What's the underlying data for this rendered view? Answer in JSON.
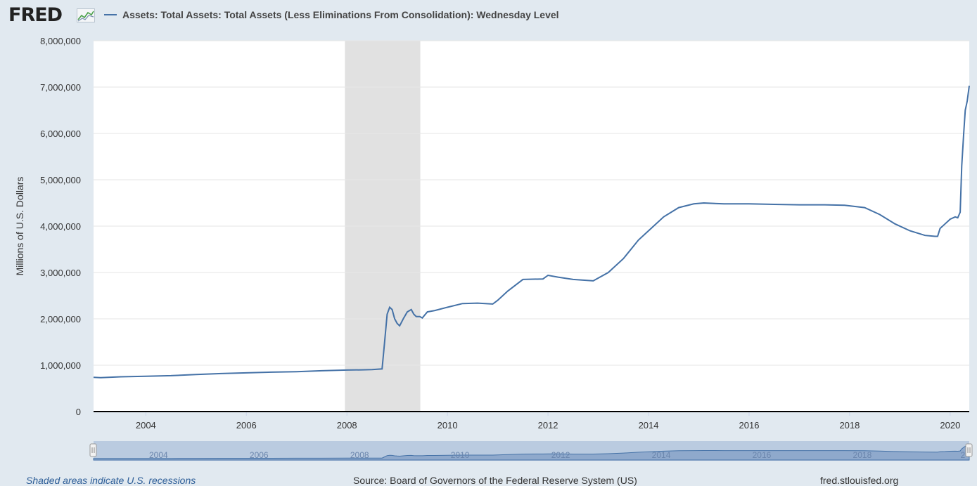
{
  "header": {
    "logo_text": "FRED",
    "series_title": "Assets: Total Assets: Total Assets (Less Eliminations From Consolidation): Wednesday Level"
  },
  "footer": {
    "recession_note": "Shaded areas indicate U.S. recessions",
    "source": "Source: Board of Governors of the Federal Reserve System (US)",
    "url": "fred.stlouisfed.org"
  },
  "colors": {
    "line": "#4572a7",
    "recession": "#e1e1e1",
    "navigator_fill": "#8fa9cc"
  },
  "chart_data": {
    "type": "line",
    "title": "Assets: Total Assets: Total Assets (Less Eliminations From Consolidation): Wednesday Level",
    "xlabel": "",
    "ylabel": "Millions of U.S. Dollars",
    "xlim": [
      2002.96,
      2020.38
    ],
    "ylim": [
      0,
      8000000
    ],
    "y_ticks": [
      0,
      1000000,
      2000000,
      3000000,
      4000000,
      5000000,
      6000000,
      7000000,
      8000000
    ],
    "y_tick_labels": [
      "0",
      "1,000,000",
      "2,000,000",
      "3,000,000",
      "4,000,000",
      "5,000,000",
      "6,000,000",
      "7,000,000",
      "8,000,000"
    ],
    "x_ticks": [
      2004,
      2006,
      2008,
      2010,
      2012,
      2014,
      2016,
      2018,
      2020
    ],
    "x_tick_labels": [
      "2004",
      "2006",
      "2008",
      "2010",
      "2012",
      "2014",
      "2016",
      "2018",
      "2020"
    ],
    "grid": true,
    "recessions": [
      [
        2007.96,
        2009.46
      ]
    ],
    "series": [
      {
        "name": "Assets: Total Assets: Total Assets (Less Eliminations From Consolidation): Wednesday Level",
        "x": [
          2002.96,
          2003.1,
          2003.5,
          2004.0,
          2004.5,
          2005.0,
          2005.5,
          2006.0,
          2006.5,
          2007.0,
          2007.5,
          2008.0,
          2008.3,
          2008.5,
          2008.7,
          2008.75,
          2008.8,
          2008.85,
          2008.9,
          2008.95,
          2009.0,
          2009.05,
          2009.12,
          2009.2,
          2009.28,
          2009.33,
          2009.38,
          2009.45,
          2009.5,
          2009.6,
          2009.75,
          2010.0,
          2010.3,
          2010.6,
          2010.9,
          2011.0,
          2011.2,
          2011.5,
          2011.9,
          2012.0,
          2012.2,
          2012.5,
          2012.9,
          2013.2,
          2013.5,
          2013.8,
          2014.0,
          2014.3,
          2014.6,
          2014.9,
          2015.1,
          2015.5,
          2016.0,
          2016.5,
          2017.0,
          2017.5,
          2017.9,
          2018.3,
          2018.6,
          2018.9,
          2019.2,
          2019.5,
          2019.7,
          2019.75,
          2019.8,
          2019.9,
          2020.0,
          2020.1,
          2020.15,
          2020.2,
          2020.23,
          2020.27,
          2020.3,
          2020.34,
          2020.38
        ],
        "values": [
          740000,
          730000,
          750000,
          760000,
          775000,
          800000,
          820000,
          835000,
          850000,
          860000,
          880000,
          895000,
          900000,
          905000,
          920000,
          1500000,
          2100000,
          2250000,
          2200000,
          2000000,
          1900000,
          1850000,
          2000000,
          2150000,
          2200000,
          2100000,
          2050000,
          2050000,
          2020000,
          2150000,
          2180000,
          2250000,
          2330000,
          2340000,
          2320000,
          2400000,
          2600000,
          2850000,
          2860000,
          2940000,
          2900000,
          2850000,
          2820000,
          3000000,
          3300000,
          3700000,
          3900000,
          4200000,
          4400000,
          4480000,
          4500000,
          4480000,
          4480000,
          4470000,
          4460000,
          4460000,
          4450000,
          4400000,
          4250000,
          4050000,
          3900000,
          3800000,
          3780000,
          3780000,
          3950000,
          4050000,
          4150000,
          4200000,
          4180000,
          4300000,
          5300000,
          6000000,
          6500000,
          6700000,
          7030000
        ]
      }
    ],
    "navigator_x_labels": [
      "2004",
      "2006",
      "2008",
      "2010",
      "2012",
      "2014",
      "2016",
      "2018",
      "2"
    ]
  }
}
